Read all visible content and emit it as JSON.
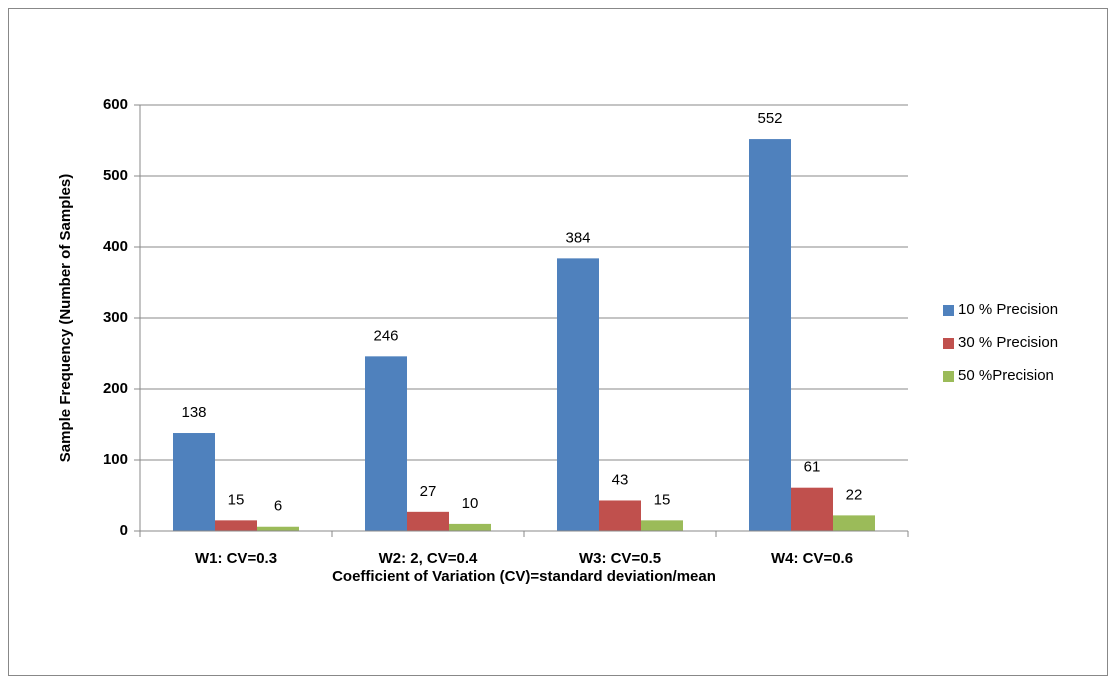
{
  "chart_data": {
    "type": "bar",
    "x_label": "Coefficient of Variation (CV)=standard deviation/mean",
    "y_label": "Sample Frequency (Number of Samples)",
    "categories": [
      "W1:  CV=0.3",
      "W2: 2, CV=0.4",
      "W3: CV=0.5",
      "W4: CV=0.6"
    ],
    "series": [
      {
        "name": "10 % Precision",
        "color": "#4f81bd",
        "values": [
          138,
          246,
          384,
          552
        ]
      },
      {
        "name": "30 % Precision",
        "color": "#c0504d",
        "values": [
          15,
          27,
          43,
          61
        ]
      },
      {
        "name": "50 %Precision",
        "color": "#9bbb59",
        "values": [
          6,
          10,
          15,
          22
        ]
      }
    ],
    "ylim": [
      0,
      600
    ],
    "yticks": [
      0,
      100,
      200,
      300,
      400,
      500,
      600
    ],
    "grid": true,
    "legend": "right"
  }
}
